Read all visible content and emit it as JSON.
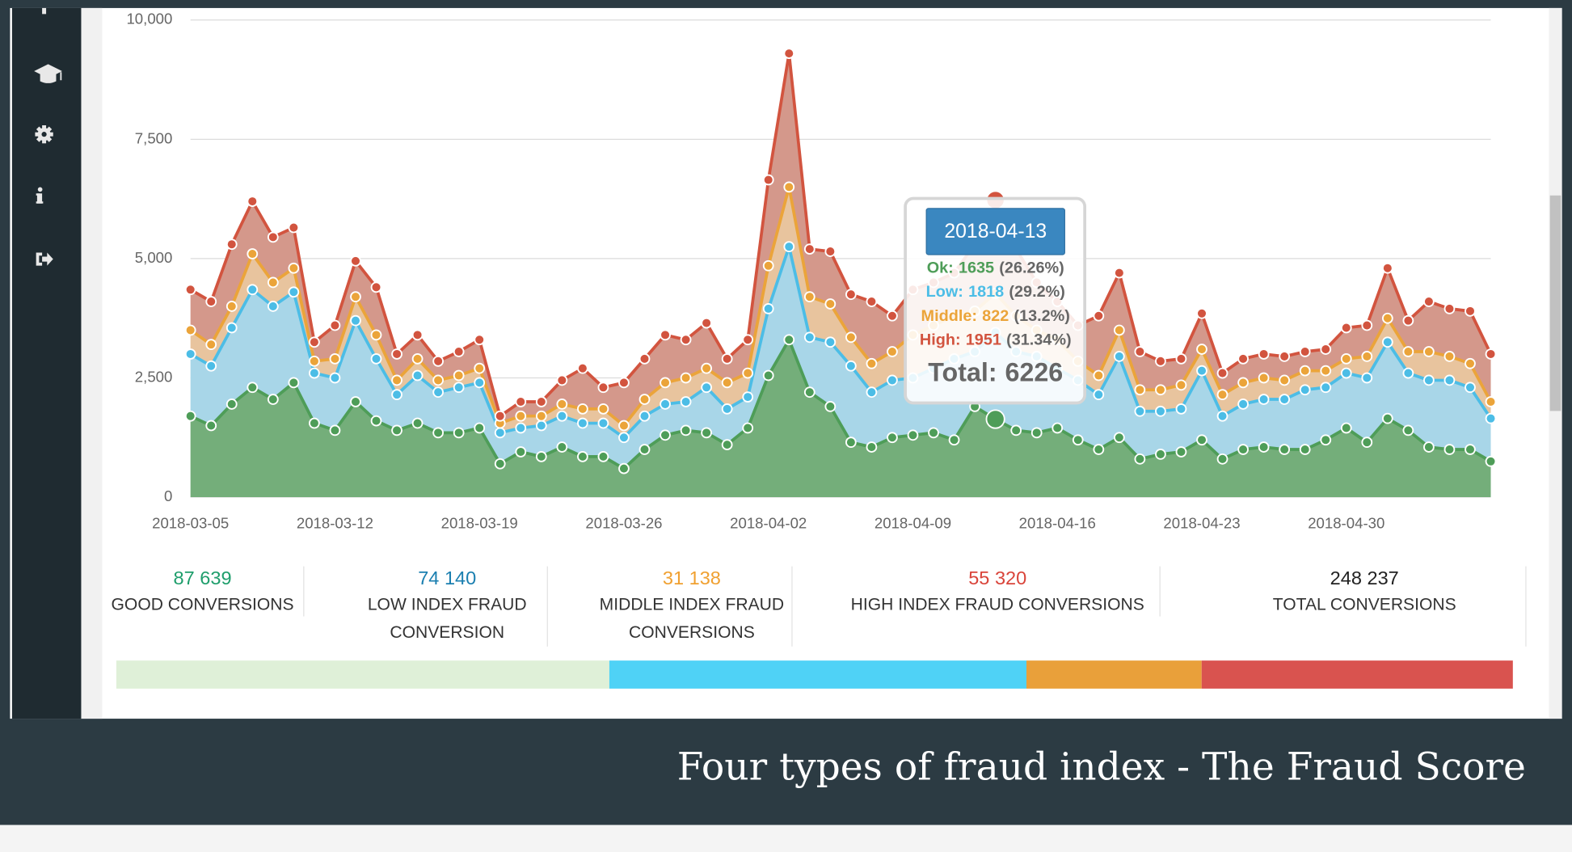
{
  "chart_data": {
    "type": "area",
    "stacked": true,
    "x": [
      "2018-03-05",
      "2018-03-06",
      "2018-03-07",
      "2018-03-08",
      "2018-03-09",
      "2018-03-10",
      "2018-03-11",
      "2018-03-12",
      "2018-03-13",
      "2018-03-14",
      "2018-03-15",
      "2018-03-16",
      "2018-03-17",
      "2018-03-18",
      "2018-03-19",
      "2018-03-20",
      "2018-03-21",
      "2018-03-22",
      "2018-03-23",
      "2018-03-24",
      "2018-03-25",
      "2018-03-26",
      "2018-03-27",
      "2018-03-28",
      "2018-03-29",
      "2018-03-30",
      "2018-03-31",
      "2018-04-01",
      "2018-04-02",
      "2018-04-03",
      "2018-04-04",
      "2018-04-05",
      "2018-04-06",
      "2018-04-07",
      "2018-04-08",
      "2018-04-09",
      "2018-04-10",
      "2018-04-11",
      "2018-04-12",
      "2018-04-13",
      "2018-04-14",
      "2018-04-15",
      "2018-04-16",
      "2018-04-17",
      "2018-04-18",
      "2018-04-19",
      "2018-04-20",
      "2018-04-21",
      "2018-04-22",
      "2018-04-23",
      "2018-04-24",
      "2018-04-25",
      "2018-04-26",
      "2018-04-27",
      "2018-04-28",
      "2018-04-29",
      "2018-04-30",
      "2018-05-01",
      "2018-05-02",
      "2018-05-03",
      "2018-05-04",
      "2018-05-05",
      "2018-05-06",
      "2018-05-07"
    ],
    "series": [
      {
        "color": "#4e9d58",
        "fill": "#74ae7a",
        "values": [
          1700,
          1500,
          1950,
          2300,
          2050,
          2400,
          1550,
          1400,
          2000,
          1600,
          1400,
          1550,
          1350,
          1350,
          1450,
          700,
          950,
          850,
          1050,
          850,
          850,
          600,
          1000,
          1300,
          1400,
          1350,
          1100,
          1450,
          2550,
          3300,
          2200,
          1900,
          1150,
          1050,
          1250,
          1300,
          1350,
          1200,
          1900,
          1635,
          1400,
          1350,
          1450,
          1200,
          1000,
          1250,
          800,
          900,
          950,
          1200,
          800,
          1000,
          1050,
          1000,
          1000,
          1200,
          1450,
          1150,
          1650,
          1400,
          1050,
          1000,
          1000,
          750
        ]
      },
      {
        "color": "#4cbde6",
        "fill": "#a8d6e8",
        "values": [
          1300,
          1250,
          1600,
          2050,
          1950,
          1900,
          1050,
          1100,
          1700,
          1300,
          750,
          1000,
          850,
          950,
          950,
          650,
          500,
          650,
          650,
          700,
          700,
          650,
          700,
          650,
          600,
          950,
          750,
          650,
          1400,
          1950,
          1150,
          1350,
          1600,
          1150,
          1200,
          1200,
          1350,
          1700,
          1150,
          1818,
          1650,
          1600,
          1250,
          1250,
          1150,
          1700,
          1000,
          900,
          900,
          1450,
          900,
          950,
          1000,
          1050,
          1250,
          1100,
          1150,
          1350,
          1600,
          1200,
          1400,
          1450,
          1300,
          900
        ]
      },
      {
        "color": "#eba43a",
        "fill": "#e8c49e",
        "values": [
          500,
          450,
          450,
          750,
          500,
          500,
          250,
          400,
          500,
          500,
          300,
          350,
          250,
          250,
          300,
          200,
          250,
          200,
          250,
          300,
          300,
          250,
          350,
          450,
          500,
          400,
          550,
          500,
          900,
          1250,
          850,
          800,
          600,
          600,
          600,
          900,
          900,
          900,
          850,
          822,
          750,
          550,
          600,
          400,
          400,
          550,
          450,
          450,
          500,
          450,
          450,
          450,
          450,
          400,
          400,
          350,
          300,
          450,
          500,
          450,
          600,
          500,
          500,
          350
        ]
      },
      {
        "color": "#d2543f",
        "fill": "#d4988b",
        "values": [
          850,
          900,
          1300,
          1100,
          950,
          850,
          400,
          700,
          750,
          1000,
          550,
          500,
          400,
          500,
          600,
          150,
          300,
          300,
          500,
          850,
          450,
          900,
          850,
          1000,
          800,
          950,
          500,
          700,
          1800,
          2800,
          1000,
          1100,
          900,
          1300,
          750,
          950,
          900,
          900,
          1400,
          1951,
          1400,
          1000,
          800,
          750,
          1250,
          1200,
          800,
          600,
          550,
          750,
          450,
          500,
          500,
          500,
          400,
          450,
          650,
          650,
          1050,
          650,
          1050,
          1000,
          1100,
          1000
        ]
      }
    ],
    "ylim": [
      0,
      10000
    ],
    "yticks": [
      0,
      {
        "value": 2500,
        "label": "2,500"
      },
      {
        "value": 5000,
        "label": "5,000"
      },
      {
        "value": 7500,
        "label": "7,500"
      },
      {
        "value": 10000,
        "label": "10,000"
      }
    ],
    "xticks": [
      "2018-03-05",
      "2018-03-12",
      "2018-03-19",
      "2018-03-26",
      "2018-04-02",
      "2018-04-09",
      "2018-04-16",
      "2018-04-23",
      "2018-04-30"
    ],
    "grid": true,
    "tooltip": {
      "date": "2018-04-13",
      "rows": [
        {
          "label": "Ok:",
          "percent": "(26.26%)"
        },
        {
          "label": "Low:",
          "percent": "(29.2%)"
        },
        {
          "label": "Middle:",
          "percent": "(13.2%)"
        },
        {
          "label": "High:",
          "percent": "(31.34%)"
        }
      ],
      "total_label": "Total:",
      "total": 6226
    }
  },
  "stats": [
    {
      "value": 87639,
      "label": "87 639",
      "title": [
        "GOOD CONVERSIONS"
      ],
      "color": "#1f9e6c",
      "bar_color": "#dff0d8"
    },
    {
      "value": 74140,
      "label": "74 140",
      "title": [
        "LOW INDEX FRAUD",
        "CONVERSION"
      ],
      "color": "#1b7fb0",
      "bar_color": "#4fd2f6"
    },
    {
      "value": 31138,
      "label": "31 138",
      "title": [
        "MIDDLE INDEX FRAUD",
        "CONVERSIONS"
      ],
      "color": "#f0a030",
      "bar_color": "#e9a03a"
    },
    {
      "value": 55320,
      "label": "55 320",
      "title": [
        "HIGH INDEX FRAUD CONVERSIONS"
      ],
      "color": "#d9443a",
      "bar_color": "#d9534f"
    },
    {
      "value": 248237,
      "label": "248 237",
      "title": [
        "TOTAL CONVERSIONS"
      ],
      "color": "#222222"
    }
  ],
  "caption": "Four types of fraud index - The Fraud Score"
}
